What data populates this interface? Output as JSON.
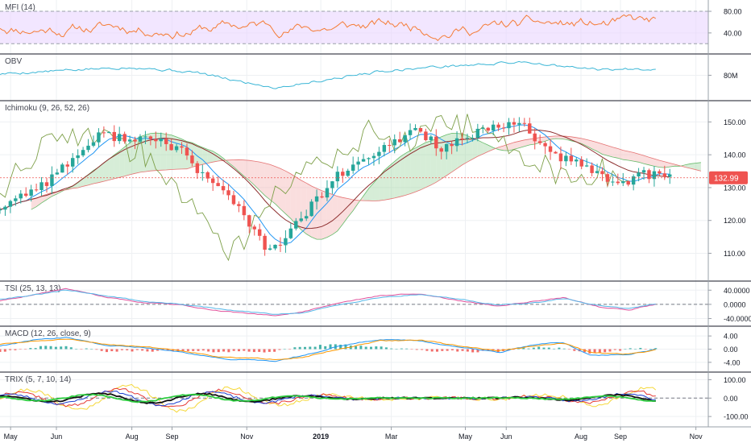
{
  "colors": {
    "mfi_line": "#f57c36",
    "mfi_band": "#e9d5ff",
    "obv_line": "#3bb6d6",
    "price_up": "#26a69a",
    "price_down": "#ef5350",
    "kijun": "#8d2e2e",
    "tenkan": "#2196f3",
    "chikou": "#7ea04a",
    "cloud_bull": "#a5d6a7",
    "cloud_bear": "#f4b6b6",
    "tsi_line": "#e0529c",
    "tsi_signal": "#54b6e8",
    "macd_line": "#2196f3",
    "macd_signal": "#ff9800",
    "trix_a": "#f5d83a",
    "trix_b": "#e53935",
    "trix_c": "#1e40d0",
    "trix_d": "#111111",
    "trix_e": "#2ecc40",
    "last_price_badge": "#ef5350"
  },
  "chart_data": [
    {
      "panel": "mfi",
      "type": "line",
      "title": "MFI (14)",
      "ylim": [
        10,
        92
      ],
      "yticks": [
        {
          "v": 80,
          "label": "80.00"
        },
        {
          "v": 40,
          "label": "40.00"
        }
      ],
      "band": [
        20,
        80
      ],
      "series": [
        {
          "seed": 11,
          "base": 52,
          "amp": 28,
          "mn": 12,
          "mx": 90
        }
      ]
    },
    {
      "panel": "obv",
      "type": "line",
      "title": "OBV",
      "ylim": [
        65,
        92
      ],
      "yticks": [
        {
          "v": 80,
          "label": "80M"
        }
      ],
      "series": [
        {
          "points": [
            [
              0,
              81
            ],
            [
              0.12,
              84
            ],
            [
              0.2,
              86
            ],
            [
              0.3,
              82
            ],
            [
              0.36,
              76
            ],
            [
              0.42,
              71
            ],
            [
              0.5,
              77
            ],
            [
              0.58,
              83
            ],
            [
              0.66,
              86
            ],
            [
              0.74,
              88
            ],
            [
              0.8,
              90
            ],
            [
              0.86,
              86
            ],
            [
              0.92,
              84
            ],
            [
              1,
              85
            ]
          ]
        }
      ]
    },
    {
      "panel": "ichimoku",
      "type": "candlestick",
      "title": "Ichimoku (9, 26, 52, 26)",
      "ylim": [
        103,
        155
      ],
      "yticks": [
        {
          "v": 150,
          "label": "150.00"
        },
        {
          "v": 140,
          "label": "140.00"
        },
        {
          "v": 130,
          "label": "130.00"
        },
        {
          "v": 120,
          "label": "120.00"
        },
        {
          "v": 110,
          "label": "110.00"
        }
      ],
      "last_price": {
        "v": 132.99,
        "label": "132.99"
      },
      "path": [
        [
          0,
          124
        ],
        [
          0.07,
          132
        ],
        [
          0.15,
          146
        ],
        [
          0.21,
          145
        ],
        [
          0.27,
          142
        ],
        [
          0.3,
          134
        ],
        [
          0.35,
          126
        ],
        [
          0.4,
          110
        ],
        [
          0.44,
          118
        ],
        [
          0.5,
          133
        ],
        [
          0.56,
          140
        ],
        [
          0.62,
          148
        ],
        [
          0.66,
          142
        ],
        [
          0.72,
          147
        ],
        [
          0.78,
          150
        ],
        [
          0.82,
          140
        ],
        [
          0.88,
          136
        ],
        [
          0.92,
          131
        ],
        [
          0.96,
          134
        ],
        [
          1,
          133
        ]
      ]
    },
    {
      "panel": "tsi",
      "type": "line",
      "title": "TSI (25, 13, 13)",
      "ylim": [
        -48,
        52
      ],
      "yticks": [
        {
          "v": 40,
          "label": "40.0000"
        },
        {
          "v": 0,
          "label": "0.0000"
        },
        {
          "v": -40,
          "label": "-40.0000"
        }
      ],
      "series": [
        {
          "name_ref": "tsi_line",
          "points": [
            [
              0,
              10
            ],
            [
              0.06,
              30
            ],
            [
              0.1,
              45
            ],
            [
              0.16,
              20
            ],
            [
              0.22,
              5
            ],
            [
              0.28,
              -2
            ],
            [
              0.34,
              -20
            ],
            [
              0.42,
              -32
            ],
            [
              0.46,
              -22
            ],
            [
              0.52,
              5
            ],
            [
              0.58,
              25
            ],
            [
              0.64,
              30
            ],
            [
              0.7,
              10
            ],
            [
              0.76,
              -5
            ],
            [
              0.82,
              10
            ],
            [
              0.86,
              20
            ],
            [
              0.92,
              -10
            ],
            [
              0.96,
              -15
            ],
            [
              1,
              0
            ]
          ]
        },
        {
          "name_ref": "tsi_signal",
          "points": [
            [
              0,
              15
            ],
            [
              0.06,
              28
            ],
            [
              0.1,
              40
            ],
            [
              0.16,
              25
            ],
            [
              0.22,
              8
            ],
            [
              0.28,
              0
            ],
            [
              0.34,
              -15
            ],
            [
              0.42,
              -28
            ],
            [
              0.46,
              -25
            ],
            [
              0.52,
              0
            ],
            [
              0.58,
              20
            ],
            [
              0.64,
              28
            ],
            [
              0.7,
              15
            ],
            [
              0.76,
              -2
            ],
            [
              0.82,
              5
            ],
            [
              0.86,
              16
            ],
            [
              0.92,
              -6
            ],
            [
              0.96,
              -12
            ],
            [
              1,
              2
            ]
          ]
        }
      ]
    },
    {
      "panel": "macd",
      "type": "line",
      "title": "MACD (12, 26, close, 9)",
      "ylim": [
        -5.5,
        5.5
      ],
      "yticks": [
        {
          "v": 4,
          "label": "4.00"
        },
        {
          "v": 0,
          "label": "0.00"
        },
        {
          "v": -4,
          "label": "-4.00"
        }
      ],
      "series": [
        {
          "name_ref": "macd_line",
          "points": [
            [
              0,
              1
            ],
            [
              0.06,
              3
            ],
            [
              0.1,
              3.5
            ],
            [
              0.16,
              1
            ],
            [
              0.22,
              0.5
            ],
            [
              0.28,
              -1
            ],
            [
              0.34,
              -3
            ],
            [
              0.42,
              -3.5
            ],
            [
              0.46,
              -2
            ],
            [
              0.52,
              1
            ],
            [
              0.58,
              3
            ],
            [
              0.64,
              2.5
            ],
            [
              0.7,
              0.5
            ],
            [
              0.76,
              -1
            ],
            [
              0.82,
              1.5
            ],
            [
              0.86,
              2
            ],
            [
              0.9,
              -2
            ],
            [
              0.96,
              -1.5
            ],
            [
              1,
              0
            ]
          ]
        },
        {
          "name_ref": "macd_signal",
          "points": [
            [
              0,
              1.5
            ],
            [
              0.06,
              2.5
            ],
            [
              0.1,
              3
            ],
            [
              0.16,
              1.5
            ],
            [
              0.22,
              0.8
            ],
            [
              0.28,
              -0.5
            ],
            [
              0.34,
              -2.5
            ],
            [
              0.42,
              -3
            ],
            [
              0.46,
              -2.5
            ],
            [
              0.52,
              0
            ],
            [
              0.58,
              2.5
            ],
            [
              0.64,
              2.8
            ],
            [
              0.7,
              1
            ],
            [
              0.76,
              -0.5
            ],
            [
              0.82,
              1
            ],
            [
              0.86,
              1.8
            ],
            [
              0.9,
              -1
            ],
            [
              0.96,
              -1.5
            ],
            [
              1,
              -0.2
            ]
          ]
        }
      ]
    },
    {
      "panel": "trix",
      "type": "line",
      "title": "TRIX (5, 7, 10, 14)",
      "ylim": [
        -130,
        115
      ],
      "yticks": [
        {
          "v": 100,
          "label": "100.00"
        },
        {
          "v": 0,
          "label": "0.00"
        },
        {
          "v": -100,
          "label": "-100.00"
        }
      ],
      "series": [
        {
          "name_ref": "trix_a",
          "seed": 21,
          "amp": 70
        },
        {
          "name_ref": "trix_b",
          "seed": 22,
          "amp": 50
        },
        {
          "name_ref": "trix_c",
          "seed": 23,
          "amp": 38
        },
        {
          "name_ref": "trix_d",
          "seed": 24,
          "amp": 26
        },
        {
          "name_ref": "trix_e",
          "seed": 25,
          "amp": 20
        }
      ]
    }
  ],
  "x_axis": {
    "months": [
      {
        "label": "May",
        "f": 0.015
      },
      {
        "label": "Jun",
        "f": 0.08
      },
      {
        "label": "Aug",
        "f": 0.187
      },
      {
        "label": "Sep",
        "f": 0.244
      },
      {
        "label": "Nov",
        "f": 0.35
      },
      {
        "label": "2019",
        "f": 0.455,
        "bold": true
      },
      {
        "label": "Mar",
        "f": 0.555
      },
      {
        "label": "May",
        "f": 0.66
      },
      {
        "label": "Jun",
        "f": 0.718
      },
      {
        "label": "Aug",
        "f": 0.824
      },
      {
        "label": "Sep",
        "f": 0.88
      },
      {
        "label": "Nov",
        "f": 0.987
      }
    ]
  }
}
